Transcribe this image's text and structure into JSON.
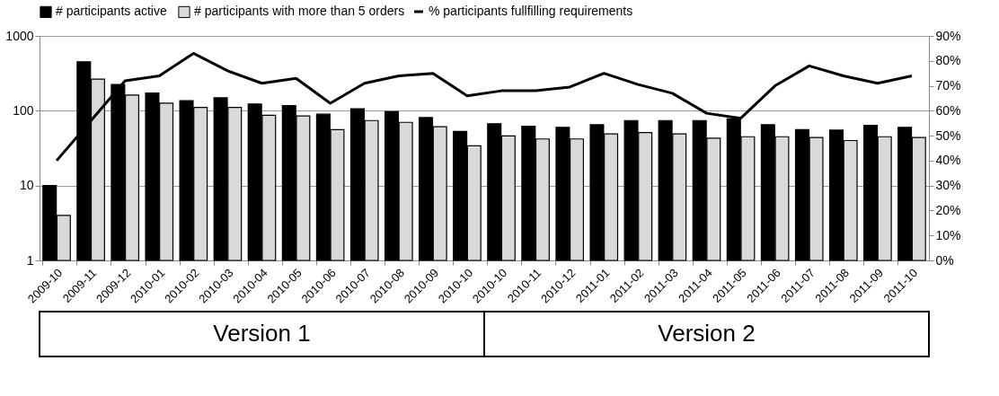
{
  "chart_data": {
    "type": "bar",
    "categories": [
      "2009-10",
      "2009-11",
      "2009-12",
      "2010-01",
      "2010-02",
      "2010-03",
      "2010-04",
      "2010-05",
      "2010-06",
      "2010-07",
      "2010-08",
      "2010-09",
      "2010-10",
      "2010-10",
      "2010-11",
      "2010-12",
      "2011-01",
      "2011-02",
      "2011-03",
      "2011-04",
      "2011-05",
      "2011-06",
      "2011-07",
      "2011-08",
      "2011-09",
      "2011-10"
    ],
    "series": [
      {
        "name": "# participants active",
        "color": "#000000",
        "values": [
          10,
          452,
          225,
          173,
          136,
          149,
          123,
          117,
          90,
          106,
          97,
          81,
          53,
          67,
          62,
          60,
          65,
          74,
          74,
          74,
          78,
          65,
          56,
          55,
          64,
          60
        ]
      },
      {
        "name": "# participants with more than 5 orders",
        "color": "#d9d9d9",
        "values": [
          4,
          264,
          162,
          126,
          111,
          111,
          87,
          85,
          56,
          74,
          70,
          61,
          34,
          46,
          42,
          42,
          49,
          51,
          49,
          43,
          45,
          45,
          44,
          40,
          45,
          44
        ]
      },
      {
        "name": "% participants fullfilling requirements",
        "type": "line",
        "axis": "y2",
        "color": "#000000",
        "values": [
          40,
          56,
          72,
          74,
          83,
          76,
          71,
          73,
          63,
          71,
          74,
          75,
          66,
          68,
          68,
          69.5,
          75,
          70.5,
          67,
          59,
          57,
          70,
          78,
          74,
          71,
          74
        ]
      }
    ],
    "log": true,
    "ylim": [
      1,
      1000
    ],
    "yticks": [
      1,
      10,
      100,
      1000
    ],
    "y2lim": [
      0,
      90
    ],
    "y2ticks": [
      {
        "value": 0,
        "label": "0%"
      },
      {
        "value": 10,
        "label": "10%"
      },
      {
        "value": 20,
        "label": "20%"
      },
      {
        "value": 30,
        "label": "30%"
      },
      {
        "value": 40,
        "label": "40%"
      },
      {
        "value": 50,
        "label": "50%"
      },
      {
        "value": 60,
        "label": "60%"
      },
      {
        "value": 70,
        "label": "70%"
      },
      {
        "value": 80,
        "label": "80%"
      },
      {
        "value": 90,
        "label": "90%"
      }
    ],
    "grid": "y",
    "legend": "top",
    "annotations": [
      "Version 1",
      "Version 2"
    ]
  }
}
